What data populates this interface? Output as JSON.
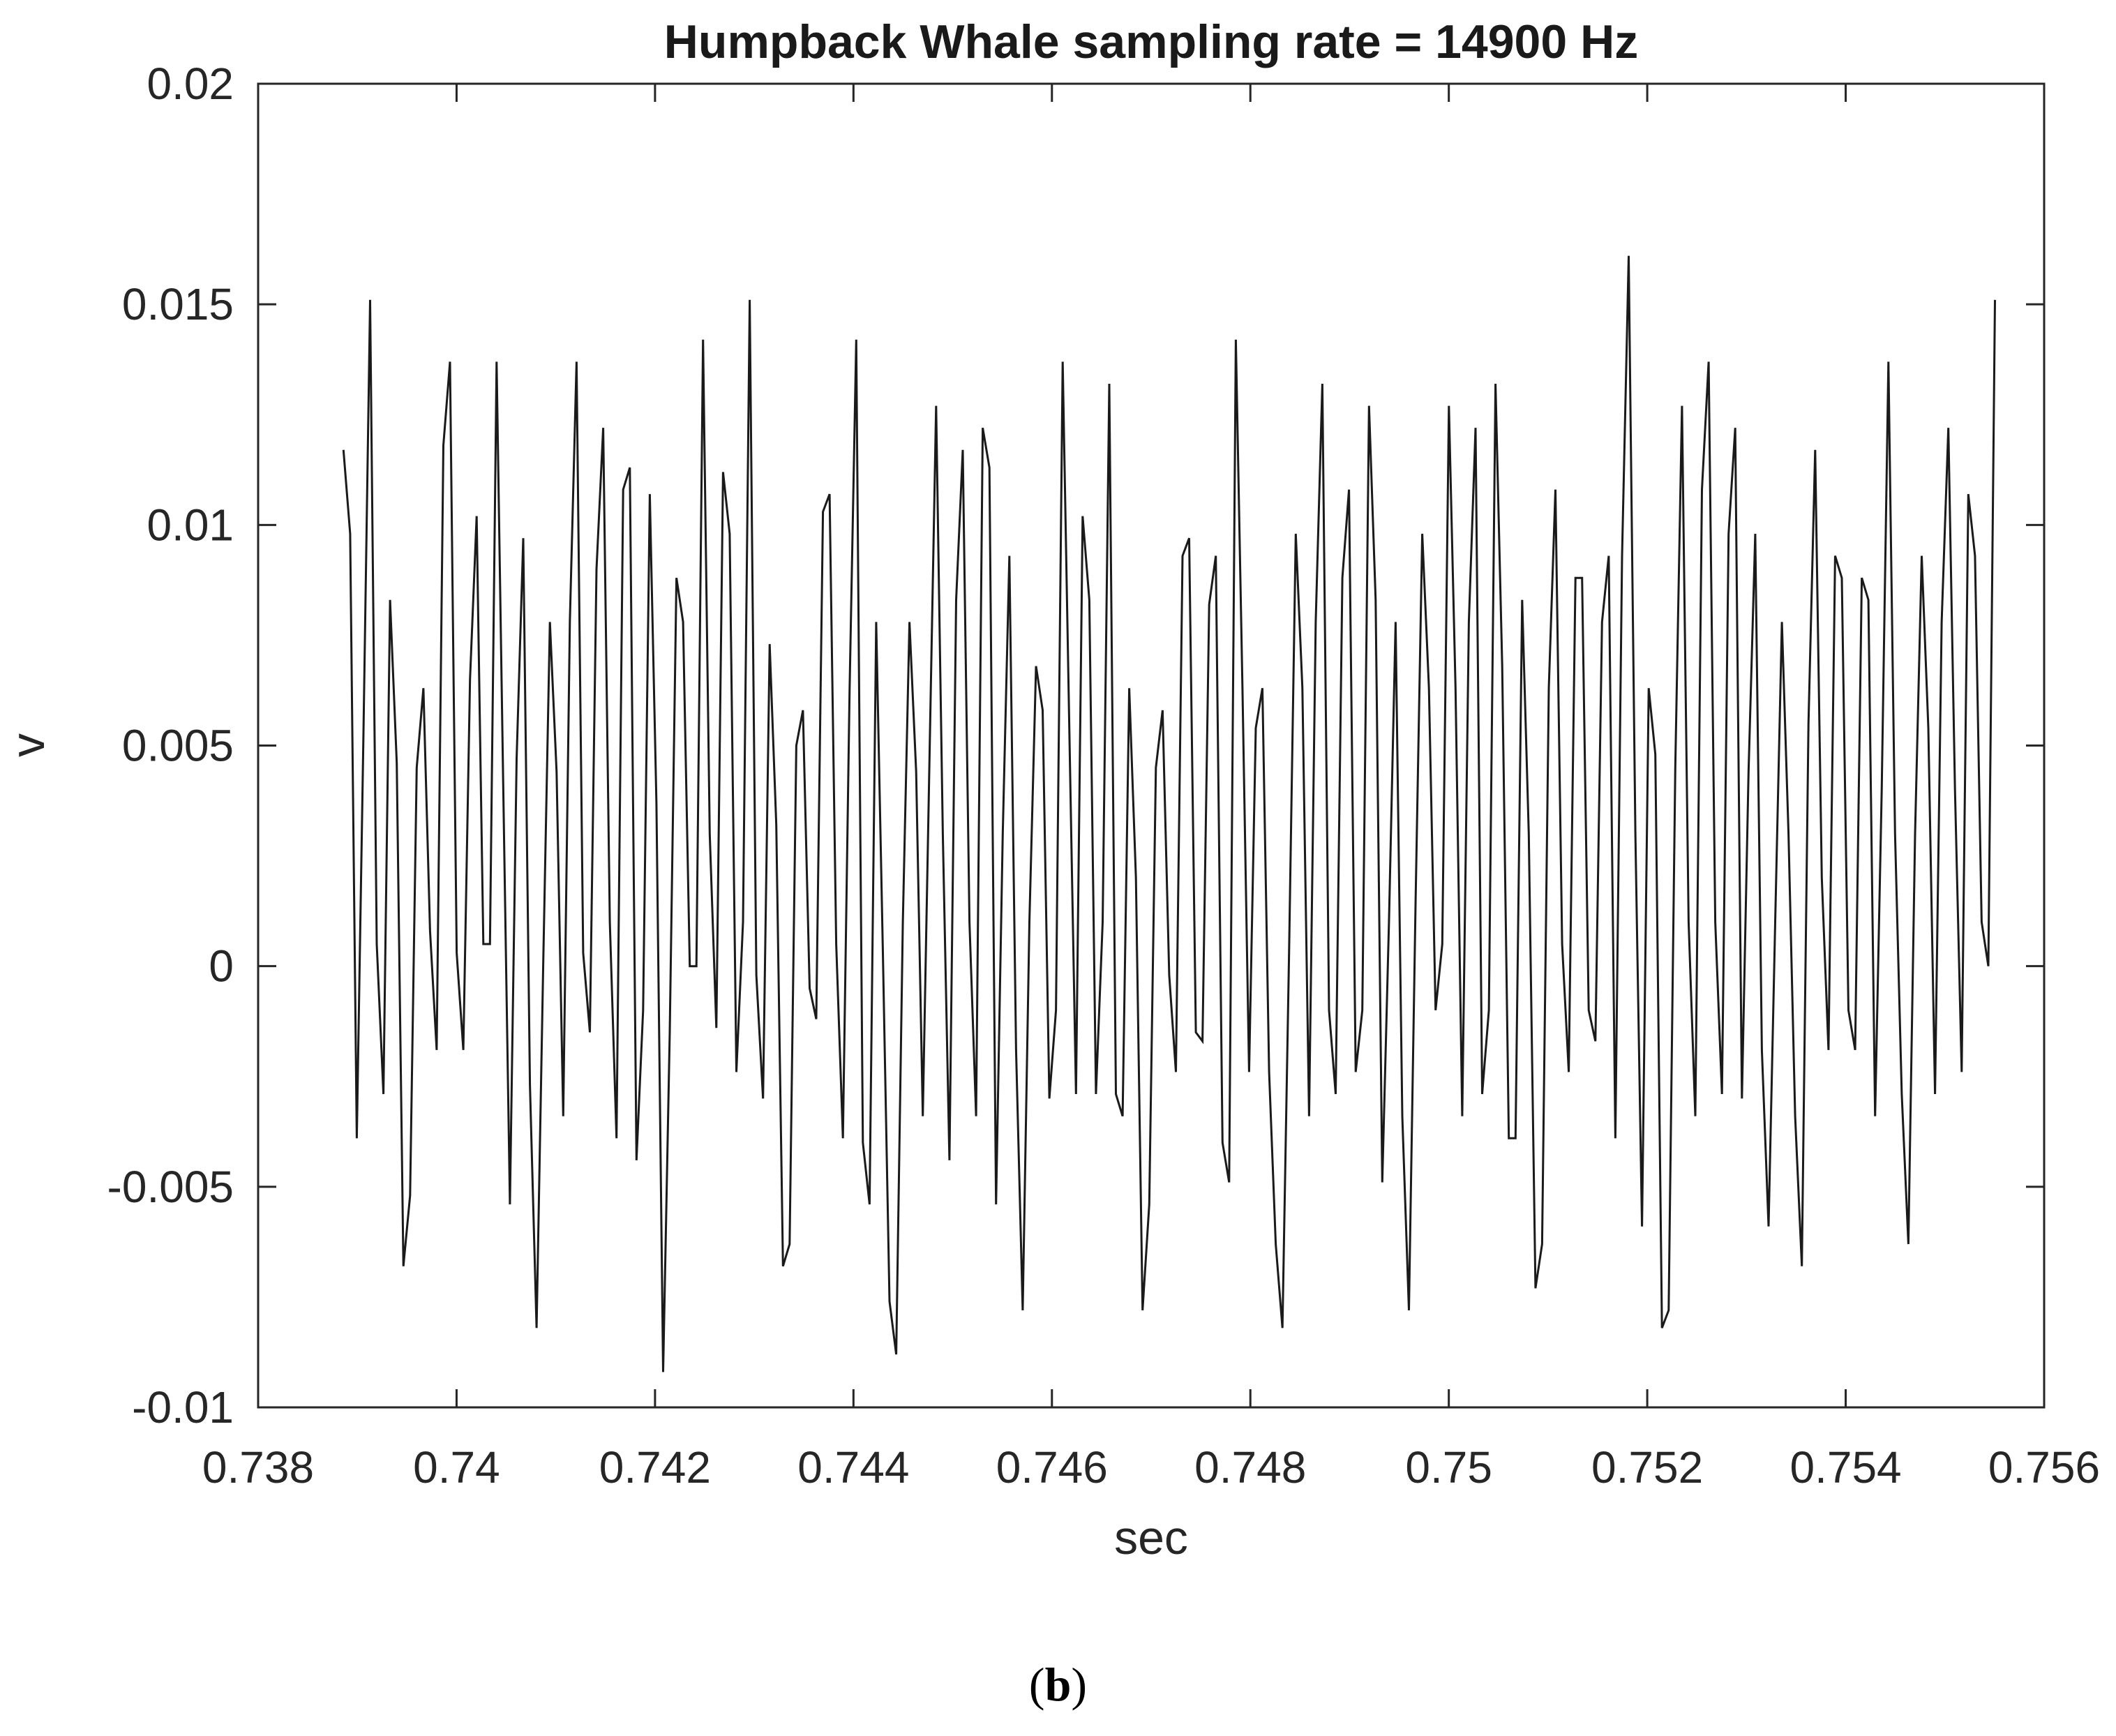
{
  "chart_data": {
    "type": "line",
    "title": "Humpback Whale sampling rate = 14900 Hz",
    "xlabel": "sec",
    "ylabel": "v",
    "xlim": [
      0.738,
      0.756
    ],
    "ylim": [
      -0.01,
      0.02
    ],
    "x_ticks": [
      "0.738",
      "0.74",
      "0.742",
      "0.744",
      "0.746",
      "0.748",
      "0.75",
      "0.752",
      "0.754",
      "0.756"
    ],
    "y_ticks": [
      "-0.01",
      "-0.005",
      "0",
      "0.005",
      "0.01",
      "0.015",
      "0.02"
    ],
    "grid": false,
    "sampling_rate_hz": 14900,
    "x_start": 0.73886,
    "series": [
      {
        "color": "#1a1a1a",
        "values": [
          0.0117,
          0.0098,
          -0.0039,
          0.0052,
          0.0151,
          0.0005,
          -0.0029,
          0.0083,
          0.0046,
          -0.0068,
          -0.0052,
          0.0045,
          0.0063,
          0.0008,
          -0.0019,
          0.0118,
          0.0137,
          0.0003,
          -0.0019,
          0.0065,
          0.0102,
          0.0005,
          0.0005,
          0.0137,
          0.004,
          -0.0054,
          0.0047,
          0.0097,
          -0.0027,
          -0.0082,
          0.0001,
          0.0078,
          0.0044,
          -0.0034,
          0.0078,
          0.0137,
          0.0003,
          -0.0015,
          0.009,
          0.0122,
          0.001,
          -0.0039,
          0.0108,
          0.0113,
          -0.0044,
          -0.001,
          0.0107,
          0.0037,
          -0.0092,
          -0.0015,
          0.0088,
          0.0078,
          0.0,
          0.0,
          0.0142,
          0.003,
          -0.0014,
          0.0112,
          0.0098,
          -0.0024,
          0.001,
          0.0151,
          -0.0002,
          -0.003,
          0.0073,
          0.0032,
          -0.0068,
          -0.0063,
          0.005,
          0.0058,
          -0.0005,
          -0.0012,
          0.0103,
          0.0107,
          0.0005,
          -0.0039,
          0.0062,
          0.0142,
          -0.004,
          -0.0054,
          0.0078,
          0.0003,
          -0.0076,
          -0.0088,
          0.001,
          0.0078,
          0.0044,
          -0.0034,
          0.0047,
          0.0127,
          0.003,
          -0.0044,
          0.0083,
          0.0117,
          0.001,
          -0.0034,
          0.0122,
          0.0113,
          -0.0054,
          0.003,
          0.0093,
          -0.0019,
          -0.0078,
          0.001,
          0.0068,
          0.0058,
          -0.003,
          -0.001,
          0.0137,
          0.0054,
          -0.0029,
          0.0102,
          0.0083,
          -0.0029,
          0.001,
          0.0132,
          -0.0029,
          -0.0034,
          0.0063,
          0.002,
          -0.0078,
          -0.0054,
          0.0045,
          0.0058,
          -0.0002,
          -0.0024,
          0.0093,
          0.0097,
          -0.0015,
          -0.0017,
          0.0082,
          0.0093,
          -0.004,
          -0.0049,
          0.0142,
          0.0063,
          -0.0024,
          0.0054,
          0.0063,
          -0.0024,
          -0.0063,
          -0.0082,
          0.0003,
          0.0098,
          0.0063,
          -0.0034,
          0.0078,
          0.0132,
          -0.001,
          -0.0029,
          0.0088,
          0.0108,
          -0.0024,
          -0.001,
          0.0127,
          0.0083,
          -0.0049,
          0.001,
          0.0078,
          -0.0034,
          -0.0078,
          0.0015,
          0.0098,
          0.0063,
          -0.001,
          0.0005,
          0.0127,
          0.0063,
          -0.0034,
          0.0078,
          0.0122,
          -0.0029,
          -0.001,
          0.0132,
          0.0068,
          -0.0039,
          -0.0039,
          0.0083,
          0.003,
          -0.0073,
          -0.0063,
          0.0063,
          0.0108,
          0.0005,
          -0.0024,
          0.0088,
          0.0088,
          -0.001,
          -0.0017,
          0.0078,
          0.0093,
          -0.0039,
          0.0093,
          0.0161,
          0.003,
          -0.0059,
          0.0063,
          0.0048,
          -0.0082,
          -0.0078,
          0.0045,
          0.0127,
          0.001,
          -0.0034,
          0.0108,
          0.0137,
          0.001,
          -0.0029,
          0.0098,
          0.0122,
          -0.003,
          0.0044,
          0.0098,
          -0.0019,
          -0.0059,
          0.001,
          0.0078,
          0.003,
          -0.0034,
          -0.0068,
          0.0055,
          0.0117,
          0.002,
          -0.0019,
          0.0093,
          0.0088,
          -0.001,
          -0.0019,
          0.0088,
          0.0083,
          -0.0034,
          0.004,
          0.0137,
          0.003,
          -0.0029,
          -0.0063,
          0.003,
          0.0093,
          0.0054,
          -0.0029,
          0.0078,
          0.0122,
          0.004,
          -0.0024,
          0.0107,
          0.0093,
          0.001,
          0.0,
          0.0151
        ]
      }
    ]
  },
  "caption": {
    "open": "(",
    "letter": "b",
    "close": ")"
  }
}
